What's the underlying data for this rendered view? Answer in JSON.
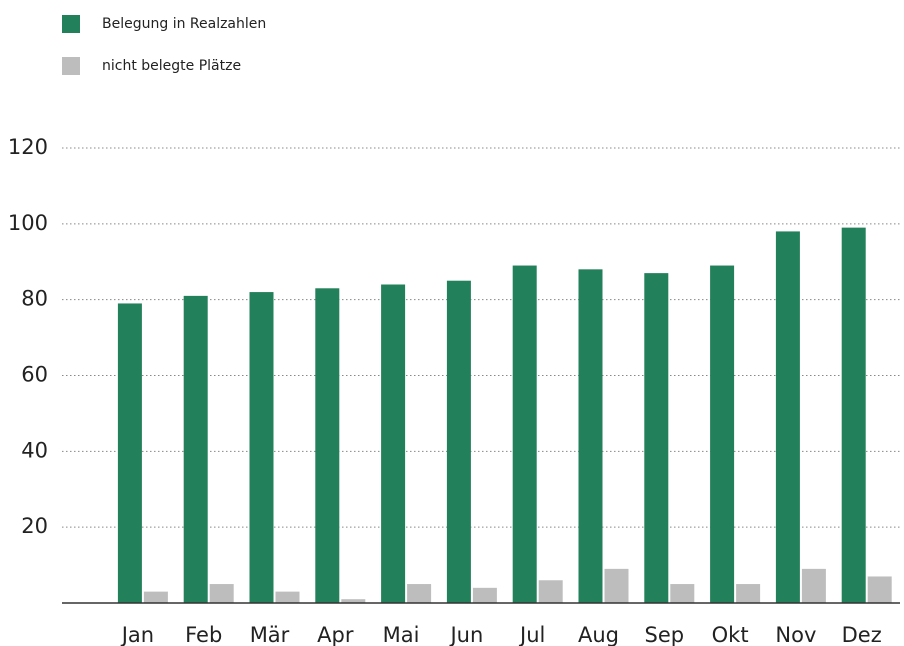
{
  "chart_data": {
    "type": "bar",
    "categories": [
      "Jan",
      "Feb",
      "Mär",
      "Apr",
      "Mai",
      "Jun",
      "Jul",
      "Aug",
      "Sep",
      "Okt",
      "Nov",
      "Dez"
    ],
    "series": [
      {
        "name": "Belegung in Realzahlen",
        "color": "#22805a",
        "values": [
          79,
          81,
          82,
          83,
          84,
          85,
          89,
          88,
          87,
          89,
          98,
          99
        ]
      },
      {
        "name": "nicht belegte Plätze",
        "color": "#bdbdbd",
        "values": [
          3,
          5,
          3,
          1,
          5,
          4,
          6,
          9,
          5,
          5,
          9,
          7
        ]
      }
    ],
    "ylim": [
      0,
      120
    ],
    "yticks": [
      20,
      40,
      60,
      80,
      100,
      120
    ],
    "grid": true,
    "legend": "top-left"
  }
}
